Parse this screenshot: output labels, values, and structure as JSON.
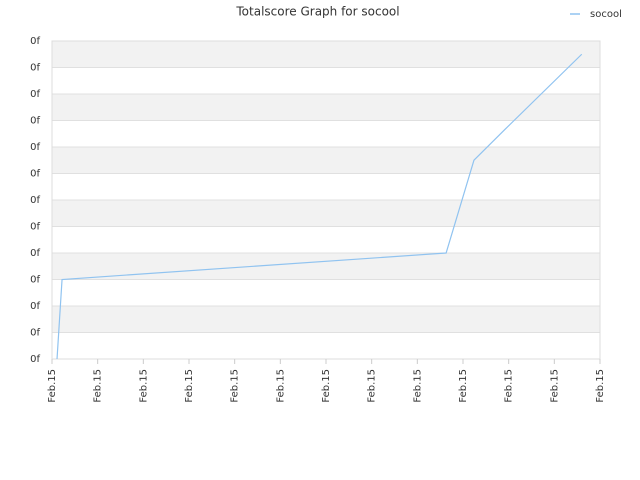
{
  "chart_data": {
    "type": "line",
    "title": "Totalscore Graph for socool",
    "x": [
      0.11,
      0.22,
      8.63,
      9.24,
      9.94,
      11.6
    ],
    "series": [
      {
        "name": "socool",
        "color": "#90c3f0",
        "values": [
          0,
          3.0,
          4.0,
          7.5,
          8.7,
          11.5
        ]
      }
    ],
    "xlim": [
      0,
      12
    ],
    "xticks": [
      {
        "value": 0,
        "label": "Feb.15"
      },
      {
        "value": 1,
        "label": "Feb.15"
      },
      {
        "value": 2,
        "label": "Feb.15"
      },
      {
        "value": 3,
        "label": "Feb.15"
      },
      {
        "value": 4,
        "label": "Feb.15"
      },
      {
        "value": 5,
        "label": "Feb.15"
      },
      {
        "value": 6,
        "label": "Feb.15"
      },
      {
        "value": 7,
        "label": "Feb.15"
      },
      {
        "value": 8,
        "label": "Feb.15"
      },
      {
        "value": 9,
        "label": "Feb.15"
      },
      {
        "value": 10,
        "label": "Feb.15"
      },
      {
        "value": 11,
        "label": "Feb.15"
      },
      {
        "value": 12,
        "label": "Feb.15"
      }
    ],
    "ylim": [
      0,
      12
    ],
    "yticks": [
      {
        "value": 0,
        "label": "0f"
      },
      {
        "value": 1,
        "label": "0f"
      },
      {
        "value": 2,
        "label": "0f"
      },
      {
        "value": 3,
        "label": "0f"
      },
      {
        "value": 4,
        "label": "0f"
      },
      {
        "value": 5,
        "label": "0f"
      },
      {
        "value": 6,
        "label": "0f"
      },
      {
        "value": 7,
        "label": "0f"
      },
      {
        "value": 8,
        "label": "0f"
      },
      {
        "value": 9,
        "label": "0f"
      },
      {
        "value": 10,
        "label": "0f"
      },
      {
        "value": 11,
        "label": "0f"
      },
      {
        "value": 12,
        "label": "0f"
      }
    ],
    "grid": true,
    "legend": "top-right"
  }
}
